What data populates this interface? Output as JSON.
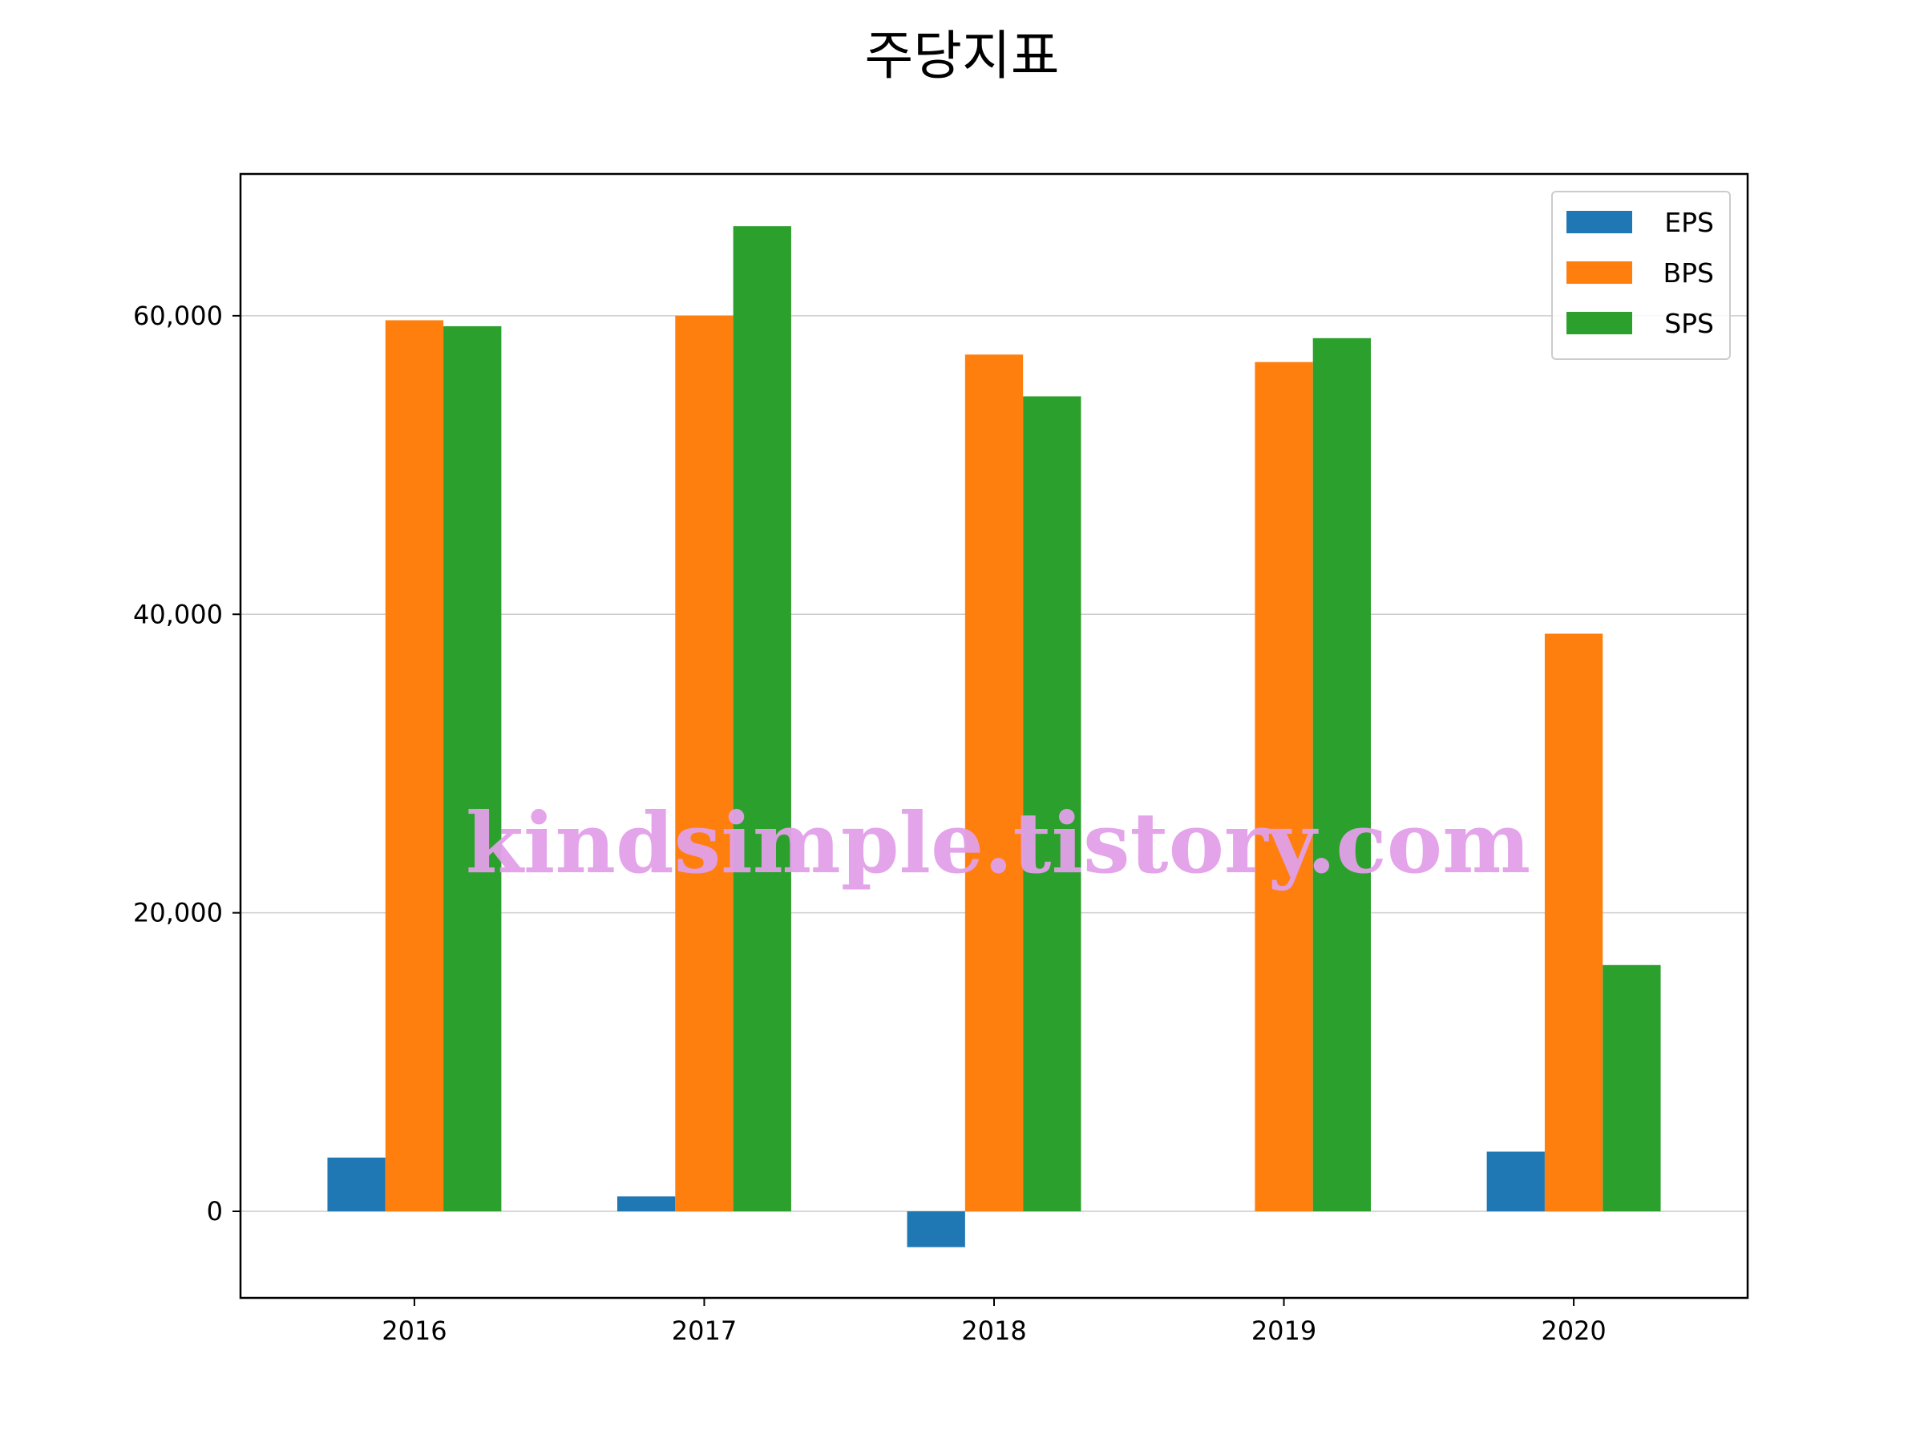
{
  "chart_data": {
    "type": "bar",
    "title": "주당지표",
    "xlabel": "",
    "ylabel": "",
    "categories": [
      "2016",
      "2017",
      "2018",
      "2019",
      "2020"
    ],
    "series": [
      {
        "name": "EPS",
        "color": "#1f77b4",
        "values": [
          3600,
          1000,
          -2400,
          0,
          4000
        ]
      },
      {
        "name": "BPS",
        "color": "#ff7f0e",
        "values": [
          59700,
          60000,
          57400,
          56900,
          38700
        ]
      },
      {
        "name": "SPS",
        "color": "#2ca02c",
        "values": [
          59300,
          66000,
          54600,
          58500,
          16500
        ]
      }
    ],
    "ylim": [
      -5800,
      69500
    ],
    "yticks": [
      0,
      20000,
      40000,
      60000
    ],
    "ytick_labels": [
      "0",
      "20,000",
      "40,000",
      "60,000"
    ],
    "grid": "horizontal",
    "legend_position": "top-right",
    "watermark": "kindsimple.tistory.com"
  }
}
